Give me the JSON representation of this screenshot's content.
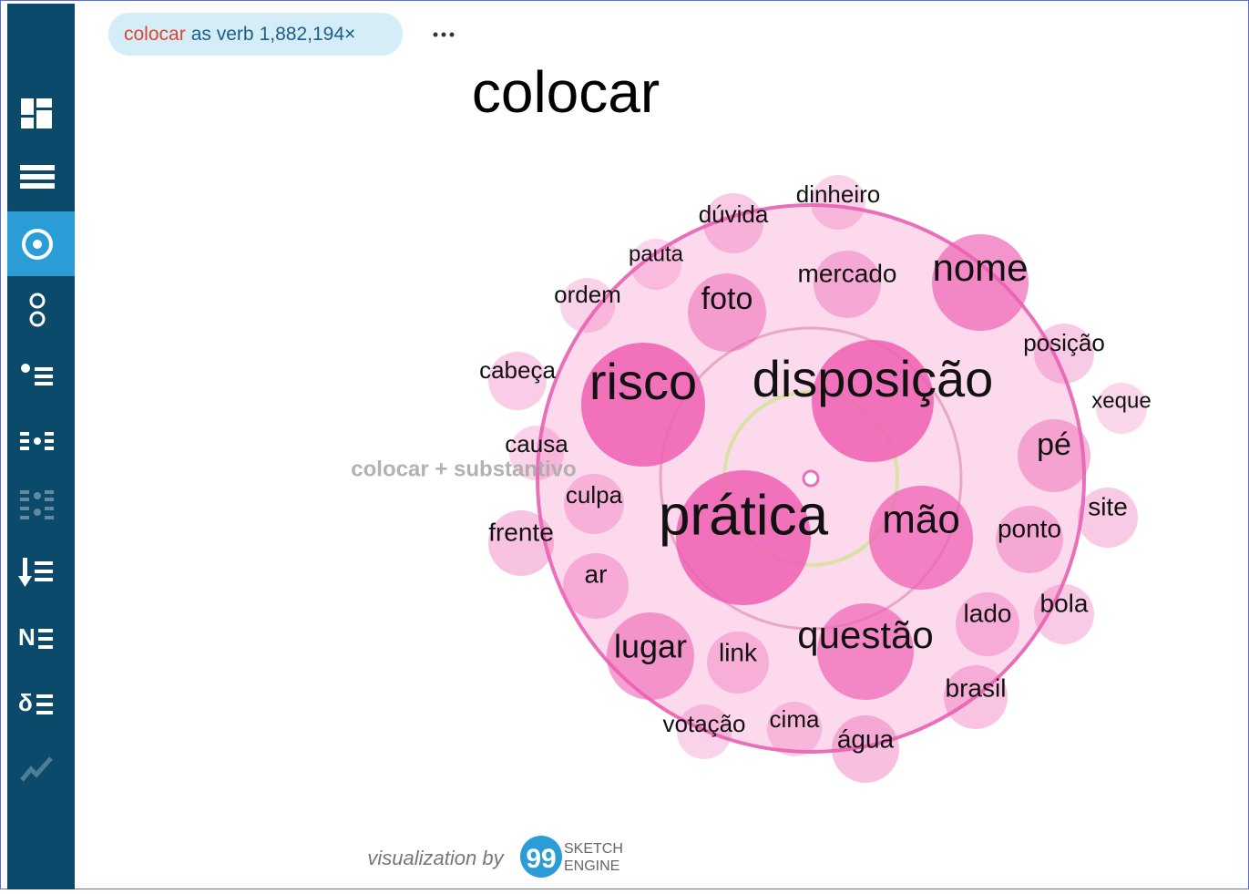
{
  "query": {
    "lemma": "colocar",
    "pos": "as verb",
    "freq": "1,882,194×"
  },
  "title": "colocar",
  "relation": "colocar + substantivo",
  "words": [
    "dinheiro",
    "dúvida",
    "pauta",
    "ordem",
    "foto",
    "mercado",
    "nome",
    "posição",
    "cabeça",
    "risco",
    "disposição",
    "xeque",
    "causa",
    "pé",
    "culpa",
    "prática",
    "mão",
    "ponto",
    "site",
    "frente",
    "ar",
    "lado",
    "bola",
    "questão",
    "lugar",
    "link",
    "brasil",
    "votação",
    "cima",
    "água"
  ],
  "footer": {
    "credit": "visualization by",
    "logo_top": "SKETCH",
    "logo_bottom": "ENGINE"
  }
}
